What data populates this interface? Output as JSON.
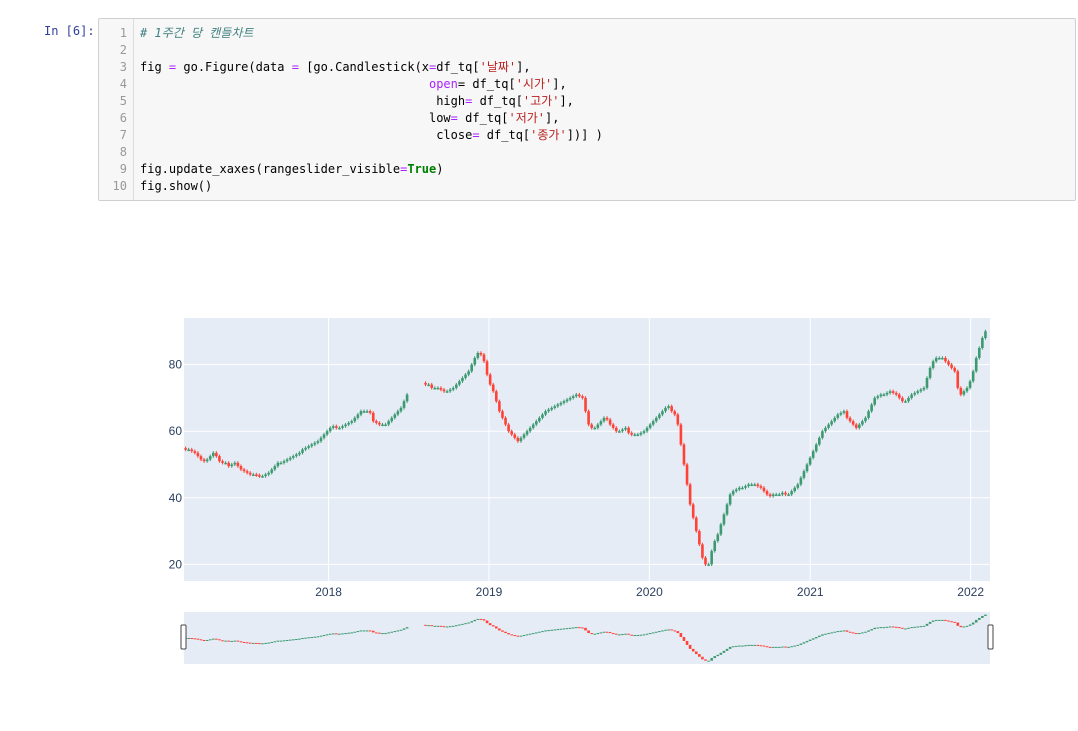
{
  "cell": {
    "prompt": "In [6]:",
    "line_numbers": [
      "1",
      "2",
      "3",
      "4",
      "5",
      "6",
      "7",
      "8",
      "9",
      "10"
    ],
    "lines": [
      [
        {
          "t": "# 1주간 당 캔들차트",
          "c": "cm"
        }
      ],
      [],
      [
        {
          "t": "fig "
        },
        {
          "t": "=",
          "c": "op"
        },
        {
          "t": " go.Figure(data "
        },
        {
          "t": "=",
          "c": "op"
        },
        {
          "t": " [go.Candlestick(x"
        },
        {
          "t": "=",
          "c": "op"
        },
        {
          "t": "df_tq["
        },
        {
          "t": "'날짜'",
          "c": "st"
        },
        {
          "t": "],"
        }
      ],
      [
        {
          "t": "                                        "
        },
        {
          "t": "open",
          "c": "op"
        },
        {
          "t": "= df_tq["
        },
        {
          "t": "'시가'",
          "c": "st"
        },
        {
          "t": "],"
        }
      ],
      [
        {
          "t": "                                         high"
        },
        {
          "t": "=",
          "c": "op"
        },
        {
          "t": " df_tq["
        },
        {
          "t": "'고가'",
          "c": "st"
        },
        {
          "t": "],"
        }
      ],
      [
        {
          "t": "                                        low"
        },
        {
          "t": "=",
          "c": "op"
        },
        {
          "t": " df_tq["
        },
        {
          "t": "'저가'",
          "c": "st"
        },
        {
          "t": "],"
        }
      ],
      [
        {
          "t": "                                         close"
        },
        {
          "t": "=",
          "c": "op"
        },
        {
          "t": " df_tq["
        },
        {
          "t": "'종가'",
          "c": "st"
        },
        {
          "t": "])] )"
        }
      ],
      [],
      [
        {
          "t": "fig.update_xaxes(rangeslider_visible"
        },
        {
          "t": "=",
          "c": "op"
        },
        {
          "t": "True",
          "c": "kw"
        },
        {
          "t": ")"
        }
      ],
      [
        {
          "t": "fig.show()"
        }
      ]
    ]
  },
  "chart_data": {
    "type": "candlestick",
    "x_ticks": [
      "2018",
      "2019",
      "2020",
      "2021",
      "2022"
    ],
    "y_ticks": [
      20,
      40,
      60,
      80
    ],
    "xlim": [
      "2017-02-06",
      "2022-02-14"
    ],
    "ylim": [
      15,
      94
    ],
    "rangeslider_visible": true,
    "colors": {
      "increasing": "#3d9970",
      "decreasing": "#ff4136",
      "plot_bg": "#e5ecf6",
      "grid": "#ffffff",
      "tick_text": "#2a3f5f"
    },
    "close_weekly": [
      54.5,
      54.5,
      54,
      53.5,
      52.5,
      51.5,
      51,
      51.5,
      52.5,
      53.5,
      52.5,
      51,
      50.5,
      50.5,
      49.5,
      50,
      50.5,
      49.5,
      48.5,
      48,
      47.5,
      47,
      47,
      46.8,
      46.5,
      46.5,
      47,
      47.5,
      48.5,
      49.5,
      50.5,
      50.5,
      51,
      51.5,
      52,
      52.5,
      53,
      53.5,
      54.5,
      55,
      55.5,
      56,
      56.5,
      57,
      58,
      59,
      60,
      61,
      61.5,
      61,
      61,
      61.5,
      62,
      62.5,
      63,
      64,
      65,
      66,
      66,
      66,
      65.5,
      63,
      62.5,
      62,
      62,
      62,
      63,
      64,
      65,
      66,
      67,
      69,
      71,
      72,
      73,
      74,
      75,
      74.5,
      74,
      74,
      73,
      73,
      73,
      72.5,
      72,
      72,
      72.5,
      73,
      74,
      75,
      76,
      77,
      78,
      80,
      82,
      83.5,
      83,
      81,
      77,
      74,
      72,
      69,
      66,
      64,
      62,
      60,
      59,
      58,
      57,
      58,
      59,
      60,
      61,
      62,
      63,
      64,
      65,
      66,
      66.5,
      67,
      67.5,
      68,
      68.5,
      69,
      69.5,
      70,
      70.5,
      71,
      70.5,
      70,
      66,
      62,
      61,
      61,
      62,
      63,
      64,
      63.5,
      62,
      61,
      60,
      60,
      60.5,
      61,
      59.5,
      59,
      59,
      59,
      59.5,
      60,
      61,
      62,
      63,
      64,
      65,
      66,
      67,
      67.5,
      66,
      65,
      62,
      56,
      50,
      44,
      38,
      34,
      30,
      26,
      22,
      20,
      20,
      24,
      27,
      29,
      32,
      35,
      38,
      41,
      42,
      42.5,
      43,
      43,
      43.5,
      44,
      44,
      44,
      43.5,
      43,
      42,
      41,
      40.5,
      41,
      41,
      41,
      41.5,
      41,
      41,
      42,
      43,
      44,
      46,
      48,
      50,
      52,
      54,
      56,
      58,
      60,
      61,
      62,
      63,
      64,
      65,
      65.5,
      66,
      64,
      63,
      62,
      61,
      62,
      63,
      64,
      66,
      68,
      70,
      70.5,
      71,
      71,
      71.5,
      72,
      71.5,
      71,
      70,
      69,
      69,
      70,
      71,
      71.5,
      72,
      72.5,
      73,
      76,
      79,
      81,
      82,
      82,
      82,
      81,
      80,
      79,
      78,
      73,
      71,
      72,
      73,
      75,
      78,
      82,
      85,
      88,
      90
    ]
  }
}
